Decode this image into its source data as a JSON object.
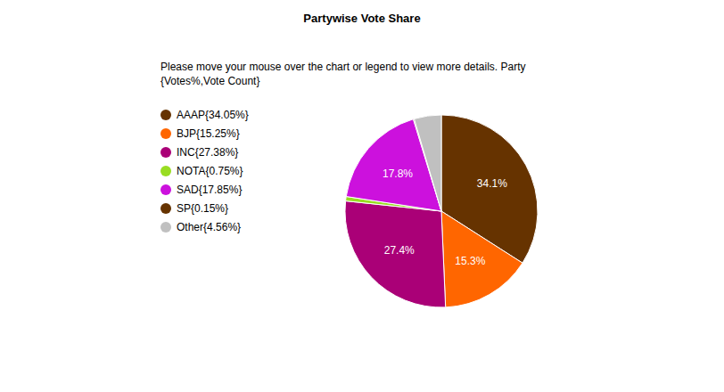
{
  "chart_data": {
    "type": "pie",
    "title": "Partywise Vote Share",
    "subtitle": "Please move your mouse over the chart or legend to view more details. Party {Votes%,Vote Count}",
    "categories": [
      "AAAP{34.05%}",
      "BJP{15.25%}",
      "INC{27.38%}",
      "NOTA{0.75%}",
      "SAD{17.85%}",
      "SP{0.15%}",
      "Other{4.56%}"
    ],
    "values": [
      34.05,
      15.25,
      27.38,
      0.75,
      17.85,
      0.15,
      4.56
    ],
    "value_labels": [
      "34.1%",
      "15.3%",
      "27.4%",
      null,
      "17.8%",
      null,
      null
    ],
    "colors": [
      "#663300",
      "#ff6600",
      "#aa0077",
      "#99dd22",
      "#cc11dd",
      "#663300",
      "#c0c0c0"
    ],
    "data_labels": true,
    "legend": "left"
  }
}
